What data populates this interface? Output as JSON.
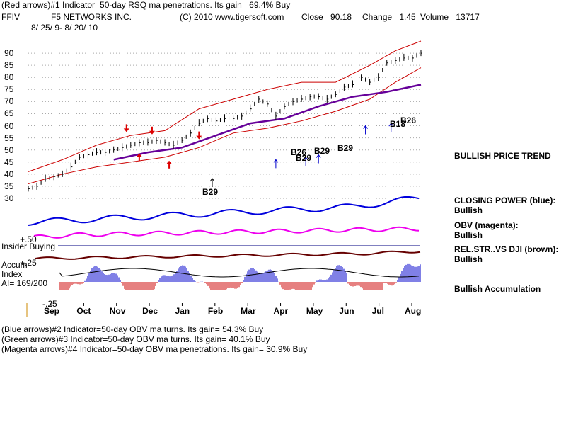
{
  "header": {
    "line1": "(Red arrows)#1 Indicator=50-day RSQ ma penetrations. Its gain= 69.4% Buy",
    "symbol": "FFIV",
    "company": "F5 NETWORKS INC.",
    "copyright": "(C) 2010 www.tigersoft.com",
    "close": "Close=  90.18",
    "change": "Change= 1.45",
    "volume": "Volume= 13717",
    "date_range": "8/ 25/ 9-  8/ 20/ 10"
  },
  "panel_labels": {
    "insider": "Insider Buying",
    "plus50": "+.50",
    "plus25": "+.25",
    "accum1": "Accum",
    "accum2": "Index",
    "ai": "AI= 169/200",
    "minus25": "-.25"
  },
  "right_labels": {
    "trend": "BULLISH PRICE TREND",
    "cp1": "CLOSING POWER (blue):",
    "cp2": "Bullish",
    "obv1": "OBV (magenta):",
    "obv2": "Bullish",
    "rs1": "REL.STR..VS DJI (brown):",
    "rs2": "Bullish",
    "accum": "Bullish Accumulation"
  },
  "footer": {
    "line1": "(Blue arrows)#2 Indicator=50-day OBV ma turns. Its gain= 54.3% Buy",
    "line2": "(Green arrows)#3 Indicator=50-day OBV ma turns. Its gain= 40.1% Buy",
    "line3": "(Magenta arrows)#4 Indicator=50-day OBV ma penetrations. Its gain= 30.9% Buy"
  },
  "signals": {
    "b29_dec": "B29",
    "b26_apr": "B26",
    "b29_apr": "B29",
    "b29_may": "B29",
    "b29_jun": "B29",
    "b18": "B18",
    "b26_jul": "B26"
  },
  "chart_data": {
    "type": "line",
    "ylim": [
      30,
      95
    ],
    "yticks": [
      "90",
      "85",
      "80",
      "75",
      "70",
      "65",
      "60",
      "55",
      "50",
      "45",
      "40",
      "35",
      "30"
    ],
    "months": [
      "Sep",
      "Oct",
      "Nov",
      "Dec",
      "Jan",
      "Feb",
      "Mar",
      "Apr",
      "May",
      "Jun",
      "Jul",
      "Aug"
    ],
    "colors": {
      "price": "#000000",
      "bands": "#cc0000",
      "ma": "#660099",
      "closing_power": "#0000dd",
      "obv": "#ee00ee",
      "rel_str": "#660000",
      "accum": "#0000cc",
      "red_arrow": "#dd0000",
      "blue_arrow": "#0000cc",
      "insider_line": "#000080"
    },
    "price": [
      [
        0,
        34
      ],
      [
        2,
        35
      ],
      [
        4,
        38
      ],
      [
        6,
        39
      ],
      [
        8,
        40
      ],
      [
        10,
        43
      ],
      [
        12,
        47
      ],
      [
        14,
        48
      ],
      [
        16,
        49
      ],
      [
        18,
        49
      ],
      [
        20,
        50
      ],
      [
        22,
        51
      ],
      [
        24,
        52
      ],
      [
        26,
        53
      ],
      [
        28,
        53
      ],
      [
        30,
        54
      ],
      [
        32,
        53
      ],
      [
        34,
        52
      ],
      [
        36,
        54
      ],
      [
        38,
        57
      ],
      [
        40,
        61
      ],
      [
        42,
        63
      ],
      [
        44,
        62
      ],
      [
        46,
        63
      ],
      [
        48,
        63
      ],
      [
        50,
        64
      ],
      [
        52,
        67
      ],
      [
        54,
        71
      ],
      [
        56,
        69
      ],
      [
        58,
        64
      ],
      [
        60,
        68
      ],
      [
        62,
        70
      ],
      [
        64,
        71
      ],
      [
        66,
        72
      ],
      [
        68,
        72
      ],
      [
        70,
        71
      ],
      [
        72,
        73
      ],
      [
        74,
        76
      ],
      [
        76,
        77
      ],
      [
        78,
        80
      ],
      [
        80,
        78
      ],
      [
        82,
        80
      ],
      [
        84,
        86
      ],
      [
        86,
        87
      ],
      [
        88,
        88
      ],
      [
        90,
        88
      ],
      [
        92,
        90
      ]
    ],
    "upper_band": [
      [
        0,
        41
      ],
      [
        8,
        46
      ],
      [
        16,
        52
      ],
      [
        24,
        56
      ],
      [
        32,
        58
      ],
      [
        40,
        67
      ],
      [
        48,
        71
      ],
      [
        56,
        75
      ],
      [
        64,
        78
      ],
      [
        72,
        78
      ],
      [
        80,
        85
      ],
      [
        86,
        91
      ],
      [
        92,
        95
      ]
    ],
    "lower_band": [
      [
        0,
        36
      ],
      [
        8,
        40
      ],
      [
        16,
        43
      ],
      [
        24,
        45
      ],
      [
        32,
        47
      ],
      [
        40,
        51
      ],
      [
        48,
        57
      ],
      [
        56,
        59
      ],
      [
        64,
        62
      ],
      [
        72,
        66
      ],
      [
        80,
        71
      ],
      [
        86,
        78
      ],
      [
        92,
        84
      ]
    ],
    "moving_avg": [
      [
        20,
        46
      ],
      [
        28,
        49
      ],
      [
        36,
        51
      ],
      [
        44,
        56
      ],
      [
        52,
        61
      ],
      [
        60,
        63
      ],
      [
        68,
        68
      ],
      [
        76,
        72
      ],
      [
        84,
        74
      ],
      [
        92,
        77
      ]
    ],
    "red_arrows_down": [
      [
        23,
        58
      ],
      [
        29,
        57
      ],
      [
        40,
        55
      ]
    ],
    "red_arrows_up": [
      [
        26,
        48
      ],
      [
        33,
        45
      ]
    ],
    "blue_arrows_up": [
      [
        58,
        46
      ],
      [
        65,
        47
      ],
      [
        68,
        48
      ],
      [
        79,
        60
      ],
      [
        85,
        61
      ]
    ]
  }
}
